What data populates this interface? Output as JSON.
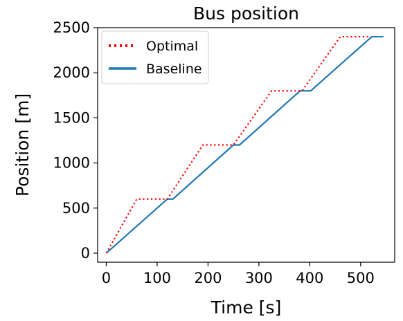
{
  "chart_data": {
    "type": "line",
    "title": "Bus position",
    "xlabel": "Time [s]",
    "ylabel": "Position [m]",
    "xlim": [
      -17,
      567
    ],
    "ylim": [
      -100,
      2500
    ],
    "xticks": [
      0,
      100,
      200,
      300,
      400,
      500
    ],
    "yticks": [
      0,
      500,
      1000,
      1500,
      2000,
      2500
    ],
    "grid": false,
    "legend_position": "top-left",
    "series": [
      {
        "name": "Optimal",
        "color": "#ff0000",
        "style": "dotted",
        "x": [
          0,
          60,
          120,
          190,
          250,
          325,
          385,
          460,
          520
        ],
        "y": [
          0,
          600,
          600,
          1200,
          1200,
          1800,
          1800,
          2400,
          2400
        ]
      },
      {
        "name": "Baseline",
        "color": "#1f77b4",
        "style": "solid",
        "x": [
          0,
          120,
          131,
          250,
          262,
          381,
          402,
          522,
          545
        ],
        "y": [
          0,
          600,
          600,
          1200,
          1200,
          1800,
          1800,
          2400,
          2400
        ]
      }
    ]
  }
}
